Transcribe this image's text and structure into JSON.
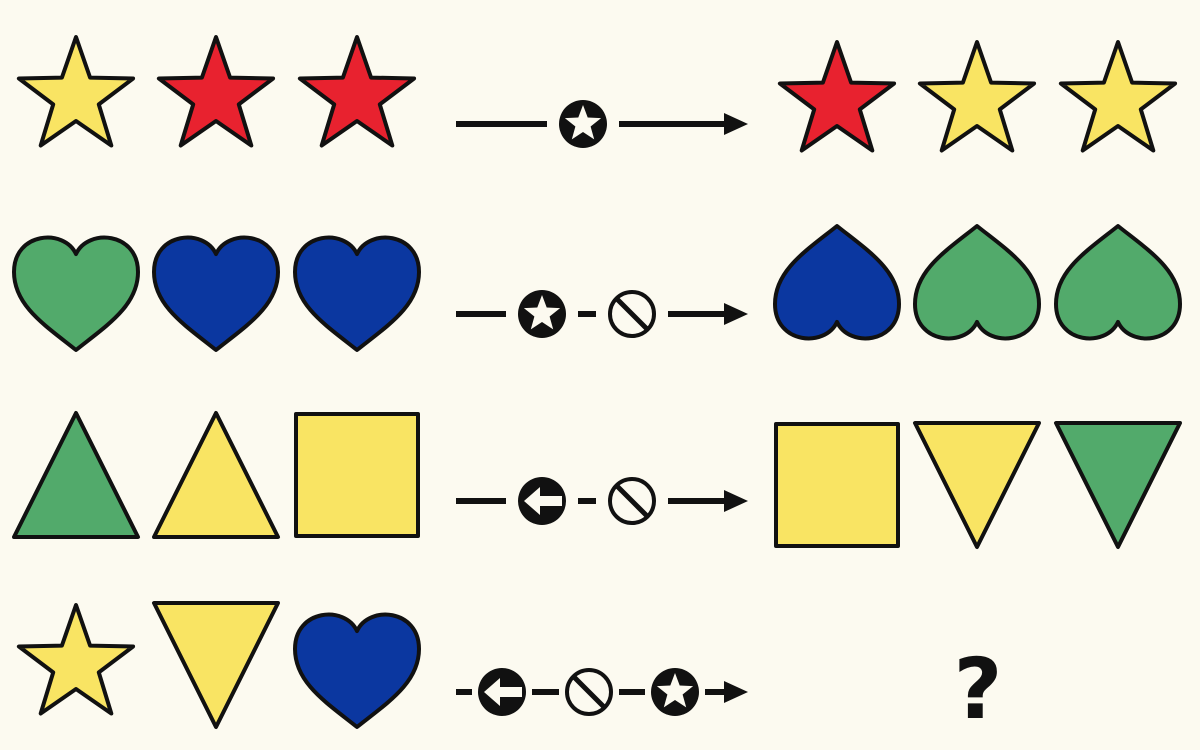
{
  "colors": {
    "background": "#fcfaf0",
    "yellow": "#f9e463",
    "red": "#e8222f",
    "green": "#52aa6b",
    "blue": "#0b37a0",
    "outline": "#111111"
  },
  "rows": [
    {
      "input": [
        {
          "shape": "star",
          "color": "yellow",
          "orientation": "up"
        },
        {
          "shape": "star",
          "color": "red",
          "orientation": "up"
        },
        {
          "shape": "star",
          "color": "red",
          "orientation": "up"
        }
      ],
      "operators": [
        "star-icon"
      ],
      "output": [
        {
          "shape": "star",
          "color": "red",
          "orientation": "up"
        },
        {
          "shape": "star",
          "color": "yellow",
          "orientation": "up"
        },
        {
          "shape": "star",
          "color": "yellow",
          "orientation": "up"
        }
      ]
    },
    {
      "input": [
        {
          "shape": "heart",
          "color": "green",
          "orientation": "up"
        },
        {
          "shape": "heart",
          "color": "blue",
          "orientation": "up"
        },
        {
          "shape": "heart",
          "color": "blue",
          "orientation": "up"
        }
      ],
      "operators": [
        "star-icon",
        "no-icon"
      ],
      "output": [
        {
          "shape": "heart",
          "color": "blue",
          "orientation": "down"
        },
        {
          "shape": "heart",
          "color": "green",
          "orientation": "down"
        },
        {
          "shape": "heart",
          "color": "green",
          "orientation": "down"
        }
      ]
    },
    {
      "input": [
        {
          "shape": "triangle",
          "color": "green",
          "orientation": "up"
        },
        {
          "shape": "triangle",
          "color": "yellow",
          "orientation": "up"
        },
        {
          "shape": "square",
          "color": "yellow",
          "orientation": "up"
        }
      ],
      "operators": [
        "arrow-left-icon",
        "no-icon"
      ],
      "output": [
        {
          "shape": "square",
          "color": "yellow",
          "orientation": "up"
        },
        {
          "shape": "triangle",
          "color": "yellow",
          "orientation": "down"
        },
        {
          "shape": "triangle",
          "color": "green",
          "orientation": "down"
        }
      ]
    },
    {
      "input": [
        {
          "shape": "star",
          "color": "yellow",
          "orientation": "up"
        },
        {
          "shape": "triangle",
          "color": "yellow",
          "orientation": "down"
        },
        {
          "shape": "heart",
          "color": "blue",
          "orientation": "up"
        }
      ],
      "operators": [
        "arrow-left-icon",
        "no-icon",
        "star-icon"
      ],
      "output": []
    }
  ],
  "unknown_answer": "?"
}
